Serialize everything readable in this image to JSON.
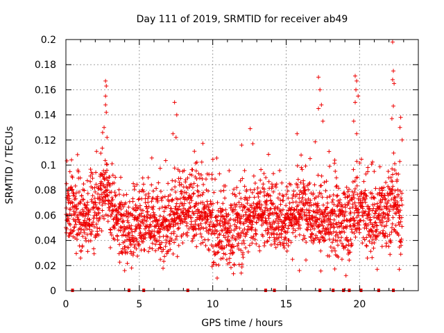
{
  "chart_data": {
    "type": "scatter",
    "title": "Day 111 of 2019, SRMTID for receiver ab49",
    "xlabel": "GPS time / hours",
    "ylabel": "SRMTID / TECUs",
    "xlim": [
      0,
      24
    ],
    "ylim": [
      0,
      0.2
    ],
    "xticks": [
      0,
      5,
      10,
      15,
      20
    ],
    "xtick_labels": [
      "0",
      "5",
      "10",
      "15",
      "20"
    ],
    "yticks": [
      0,
      0.02,
      0.04,
      0.06,
      0.08,
      0.1,
      0.12,
      0.14,
      0.16,
      0.18,
      0.2
    ],
    "ytick_labels": [
      "0",
      "0.02",
      "0.04",
      "0.06",
      "0.08",
      "0.1",
      "0.12",
      "0.14",
      "0.16",
      "0.18",
      "0.2"
    ],
    "grid": true,
    "marker": "+",
    "color": "#ee0000",
    "highlight_points": [
      {
        "x": 2.7,
        "y": 0.167
      },
      {
        "x": 2.75,
        "y": 0.163
      },
      {
        "x": 2.7,
        "y": 0.155
      },
      {
        "x": 2.7,
        "y": 0.148
      },
      {
        "x": 2.75,
        "y": 0.142
      },
      {
        "x": 2.6,
        "y": 0.13
      },
      {
        "x": 2.5,
        "y": 0.126
      },
      {
        "x": 2.8,
        "y": 0.122
      },
      {
        "x": 7.4,
        "y": 0.15
      },
      {
        "x": 7.55,
        "y": 0.14
      },
      {
        "x": 7.5,
        "y": 0.122
      },
      {
        "x": 10.3,
        "y": 0.01
      },
      {
        "x": 12.55,
        "y": 0.129
      },
      {
        "x": 17.2,
        "y": 0.17
      },
      {
        "x": 17.3,
        "y": 0.16
      },
      {
        "x": 17.4,
        "y": 0.148
      },
      {
        "x": 17.2,
        "y": 0.145
      },
      {
        "x": 17.5,
        "y": 0.135
      },
      {
        "x": 19.7,
        "y": 0.171
      },
      {
        "x": 19.8,
        "y": 0.167
      },
      {
        "x": 19.75,
        "y": 0.16
      },
      {
        "x": 19.9,
        "y": 0.155
      },
      {
        "x": 19.7,
        "y": 0.15
      },
      {
        "x": 19.6,
        "y": 0.135
      },
      {
        "x": 19.8,
        "y": 0.125
      },
      {
        "x": 22.25,
        "y": 0.198
      },
      {
        "x": 22.3,
        "y": 0.175
      },
      {
        "x": 22.25,
        "y": 0.168
      },
      {
        "x": 22.35,
        "y": 0.165
      },
      {
        "x": 22.3,
        "y": 0.147
      },
      {
        "x": 22.2,
        "y": 0.137
      },
      {
        "x": 22.8,
        "y": 0.138
      },
      {
        "x": 22.75,
        "y": 0.13
      },
      {
        "x": 22.9,
        "y": 0.12
      },
      {
        "x": 4.0,
        "y": 0.016
      },
      {
        "x": 15.9,
        "y": 0.016
      },
      {
        "x": 21.2,
        "y": 0.017
      },
      {
        "x": 22.7,
        "y": 0.017
      },
      {
        "x": 1.0,
        "y": 0.026
      },
      {
        "x": 18.8,
        "y": 0.025
      }
    ],
    "zero_markers_x": [
      0.45,
      4.3,
      5.3,
      8.3,
      13.6,
      14.2,
      17.3,
      18.2,
      18.9,
      19.3,
      20.1,
      21.3,
      22.3
    ]
  }
}
